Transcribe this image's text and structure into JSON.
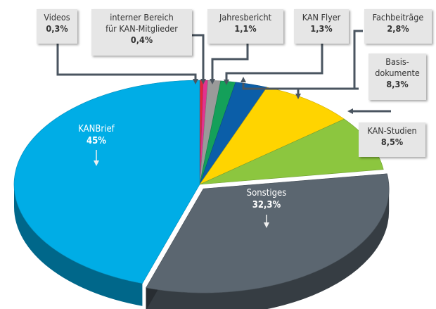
{
  "chart_data": {
    "type": "pie",
    "style": "3d",
    "start": "top",
    "direction": "clockwise",
    "slices": [
      {
        "label": "Videos",
        "value": 0.3,
        "display": "0,3%",
        "color": "#e3263a"
      },
      {
        "label": "interner Bereich für KAN-Mitglieder",
        "value": 0.4,
        "display": "0,4%",
        "color": "#e2338f"
      },
      {
        "label": "Jahresbericht",
        "value": 1.1,
        "display": "1,1%",
        "color": "#9a9a9a"
      },
      {
        "label": "KAN Flyer",
        "value": 1.3,
        "display": "1,3%",
        "color": "#14a05a"
      },
      {
        "label": "Fachbeiträge",
        "value": 2.8,
        "display": "2,8%",
        "color": "#0b5ea8"
      },
      {
        "label": "Basisdokumente",
        "value": 8.3,
        "display": "8,3%",
        "color": "#ffd400"
      },
      {
        "label": "KAN-Studien",
        "value": 8.5,
        "display": "8,5%",
        "color": "#8cc63f"
      },
      {
        "label": "Sonstiges",
        "value": 32.3,
        "display": "32,3%",
        "color": "#5b6670"
      },
      {
        "label": "KANBrief",
        "value": 45,
        "display": "45%",
        "color": "#00ade6"
      }
    ],
    "labels": {
      "videos": "Videos",
      "intern_1": "interner Bereich",
      "intern_2": "für KAN-Mitglieder",
      "jahres": "Jahresbericht",
      "flyer": "KAN Flyer",
      "fach": "Fachbeiträge",
      "basis_1": "Basis-",
      "basis_2": "dokumente",
      "studien": "KAN-Studien",
      "kanbrief": "KANBrief",
      "sonstiges": "Sonstiges"
    }
  }
}
